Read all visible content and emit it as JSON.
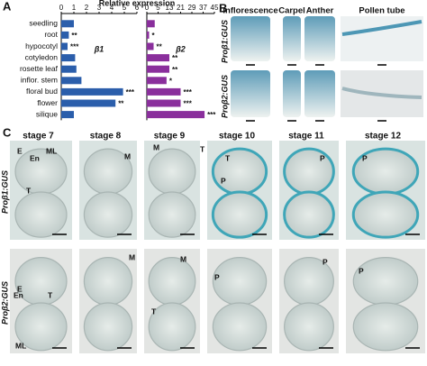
{
  "chart_data": [
    {
      "type": "bar",
      "orientation": "horizontal",
      "subtitle": "β1",
      "categories": [
        "seedling",
        "root",
        "hypocotyl",
        "cotyledon",
        "rosette leaf",
        "inflor. stem",
        "floral bud",
        "flower",
        "silique"
      ],
      "values": [
        1.0,
        0.6,
        0.5,
        1.1,
        1.2,
        1.6,
        4.9,
        4.3,
        1.0
      ],
      "color": "#2b5eab",
      "xlim": [
        0,
        6
      ],
      "xticks": [
        0,
        1,
        2,
        3,
        4,
        5,
        6
      ],
      "significance": [
        null,
        "**",
        "***",
        null,
        null,
        null,
        "***",
        "**",
        null
      ]
    },
    {
      "type": "bar",
      "orientation": "horizontal",
      "subtitle": "β2",
      "values": [
        3.5,
        1.0,
        3.0,
        13,
        13,
        11,
        21,
        21,
        38
      ],
      "color": "#8a2f9c",
      "xlim": [
        0,
        45
      ],
      "xticks": [
        0,
        5,
        13,
        21,
        29,
        37,
        45
      ],
      "significance": [
        null,
        "*",
        "**",
        "**",
        "**",
        "*",
        "***",
        "***",
        "***"
      ]
    }
  ],
  "panel_a": {
    "label": "A",
    "axis_title": "Relative expression"
  },
  "panel_b": {
    "label": "B",
    "columns": [
      "Inflorescence",
      "Carpel",
      "Anther",
      "Pollen tube"
    ],
    "rows": [
      "Proβ1:GUS",
      "Proβ2:GUS"
    ]
  },
  "panel_c": {
    "label": "C",
    "stages": [
      "stage 7",
      "stage 8",
      "stage 9",
      "stage 10",
      "stage 11",
      "stage 12"
    ],
    "rows": [
      "Proβ1:GUS",
      "Proβ2:GUS"
    ],
    "annotations": [
      [
        [
          "E",
          "En",
          "ML",
          "T"
        ],
        [
          "M"
        ],
        [
          "M",
          "T"
        ],
        [
          "T",
          "P"
        ],
        [
          "P"
        ],
        [
          "P"
        ]
      ],
      [
        [
          "E",
          "En",
          "T",
          "ML"
        ],
        [
          "M"
        ],
        [
          "M",
          "T"
        ],
        [
          "P"
        ],
        [
          "P"
        ],
        [
          "P"
        ]
      ]
    ]
  }
}
